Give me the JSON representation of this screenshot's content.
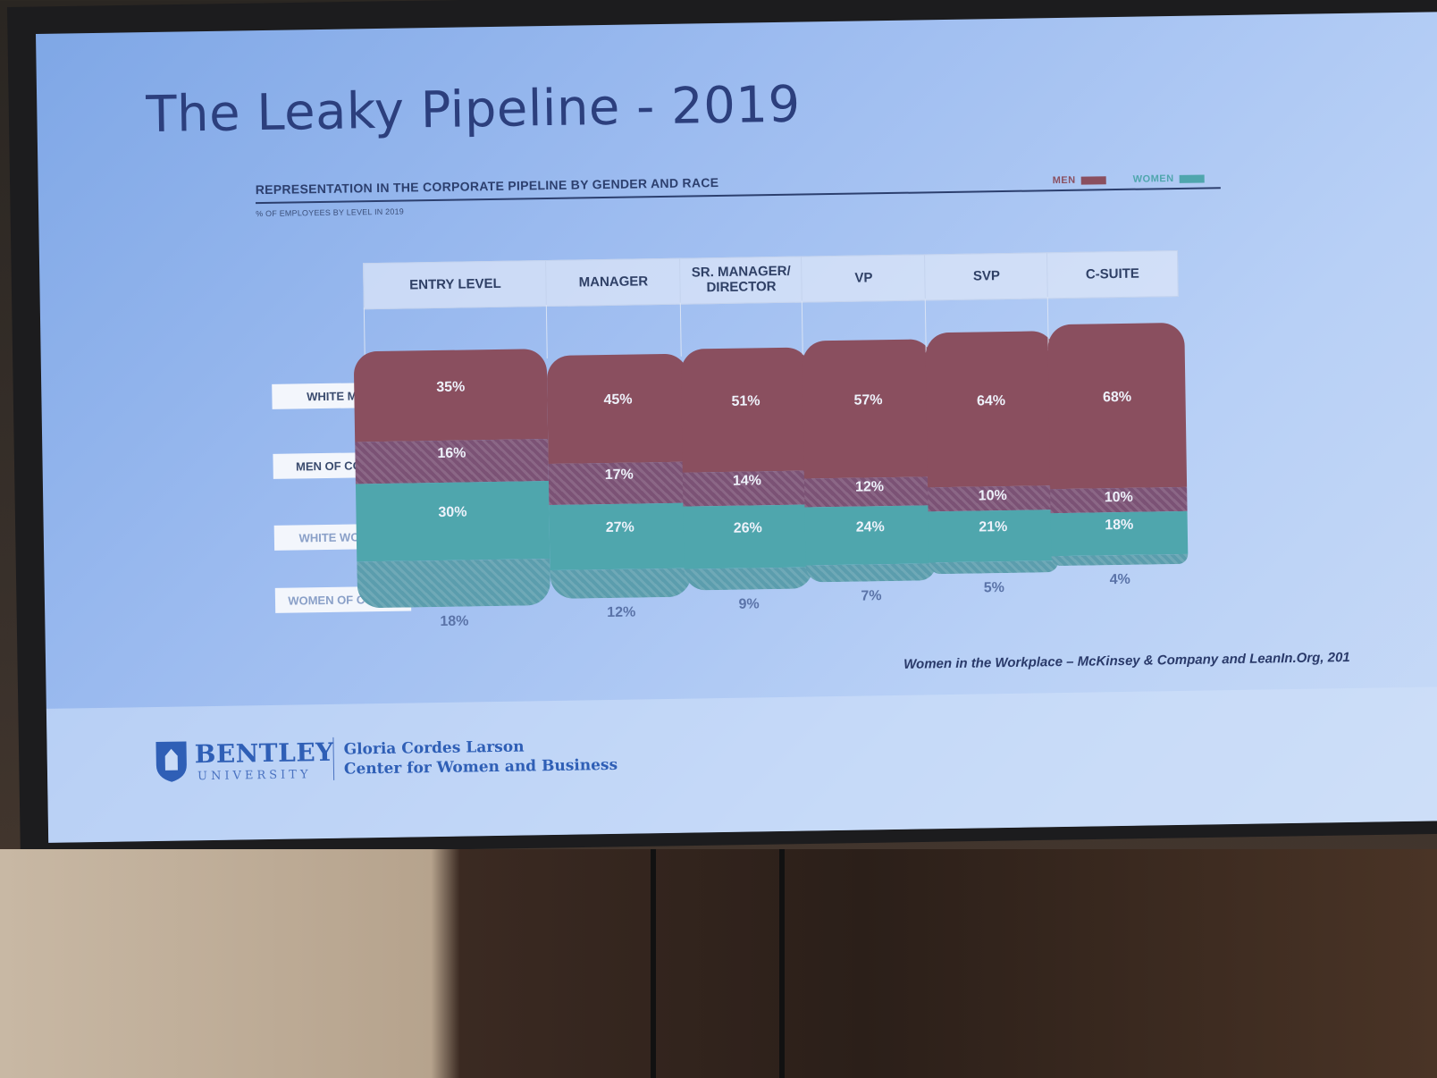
{
  "slide": {
    "title": "The Leaky Pipeline - 2019",
    "source": "Women in the Workplace – McKinsey & Company and LeanIn.Org, 201"
  },
  "chart_data": {
    "type": "bar",
    "title": "REPRESENTATION IN THE CORPORATE PIPELINE BY GENDER AND RACE",
    "subtitle": "% OF EMPLOYEES BY LEVEL IN 2019",
    "legend": [
      {
        "label": "MEN",
        "color": "#8a4f5f"
      },
      {
        "label": "WOMEN",
        "color": "#4fa6ad"
      }
    ],
    "categories": [
      "ENTRY LEVEL",
      "MANAGER",
      "SR. MANAGER/ DIRECTOR",
      "VP",
      "SVP",
      "C-SUITE"
    ],
    "series": [
      {
        "name": "WHITE MEN",
        "values": [
          35,
          45,
          51,
          57,
          64,
          68
        ],
        "labels": [
          "35%",
          "45%",
          "51%",
          "57%",
          "64%",
          "68%"
        ],
        "color": "#8a4f5f"
      },
      {
        "name": "MEN OF COLOR",
        "values": [
          16,
          17,
          14,
          12,
          10,
          10
        ],
        "labels": [
          "16%",
          "17%",
          "14%",
          "12%",
          "10%",
          "10%"
        ],
        "color": "#7b5275"
      },
      {
        "name": "WHITE WOMEN",
        "values": [
          30,
          27,
          26,
          24,
          21,
          18
        ],
        "labels": [
          "30%",
          "27%",
          "26%",
          "24%",
          "21%",
          "18%"
        ],
        "color": "#4fa6ad"
      },
      {
        "name": "WOMEN OF COLOR",
        "values": [
          18,
          12,
          9,
          7,
          5,
          4
        ],
        "labels": [
          "18%",
          "12%",
          "9%",
          "7%",
          "5%",
          "4%"
        ],
        "color": "#5b9dad"
      }
    ]
  },
  "logo": {
    "name": "BENTLEY",
    "sub": "UNIVERSITY",
    "center_line1": "Gloria Cordes Larson",
    "center_line2": "Center for Women and Business"
  }
}
